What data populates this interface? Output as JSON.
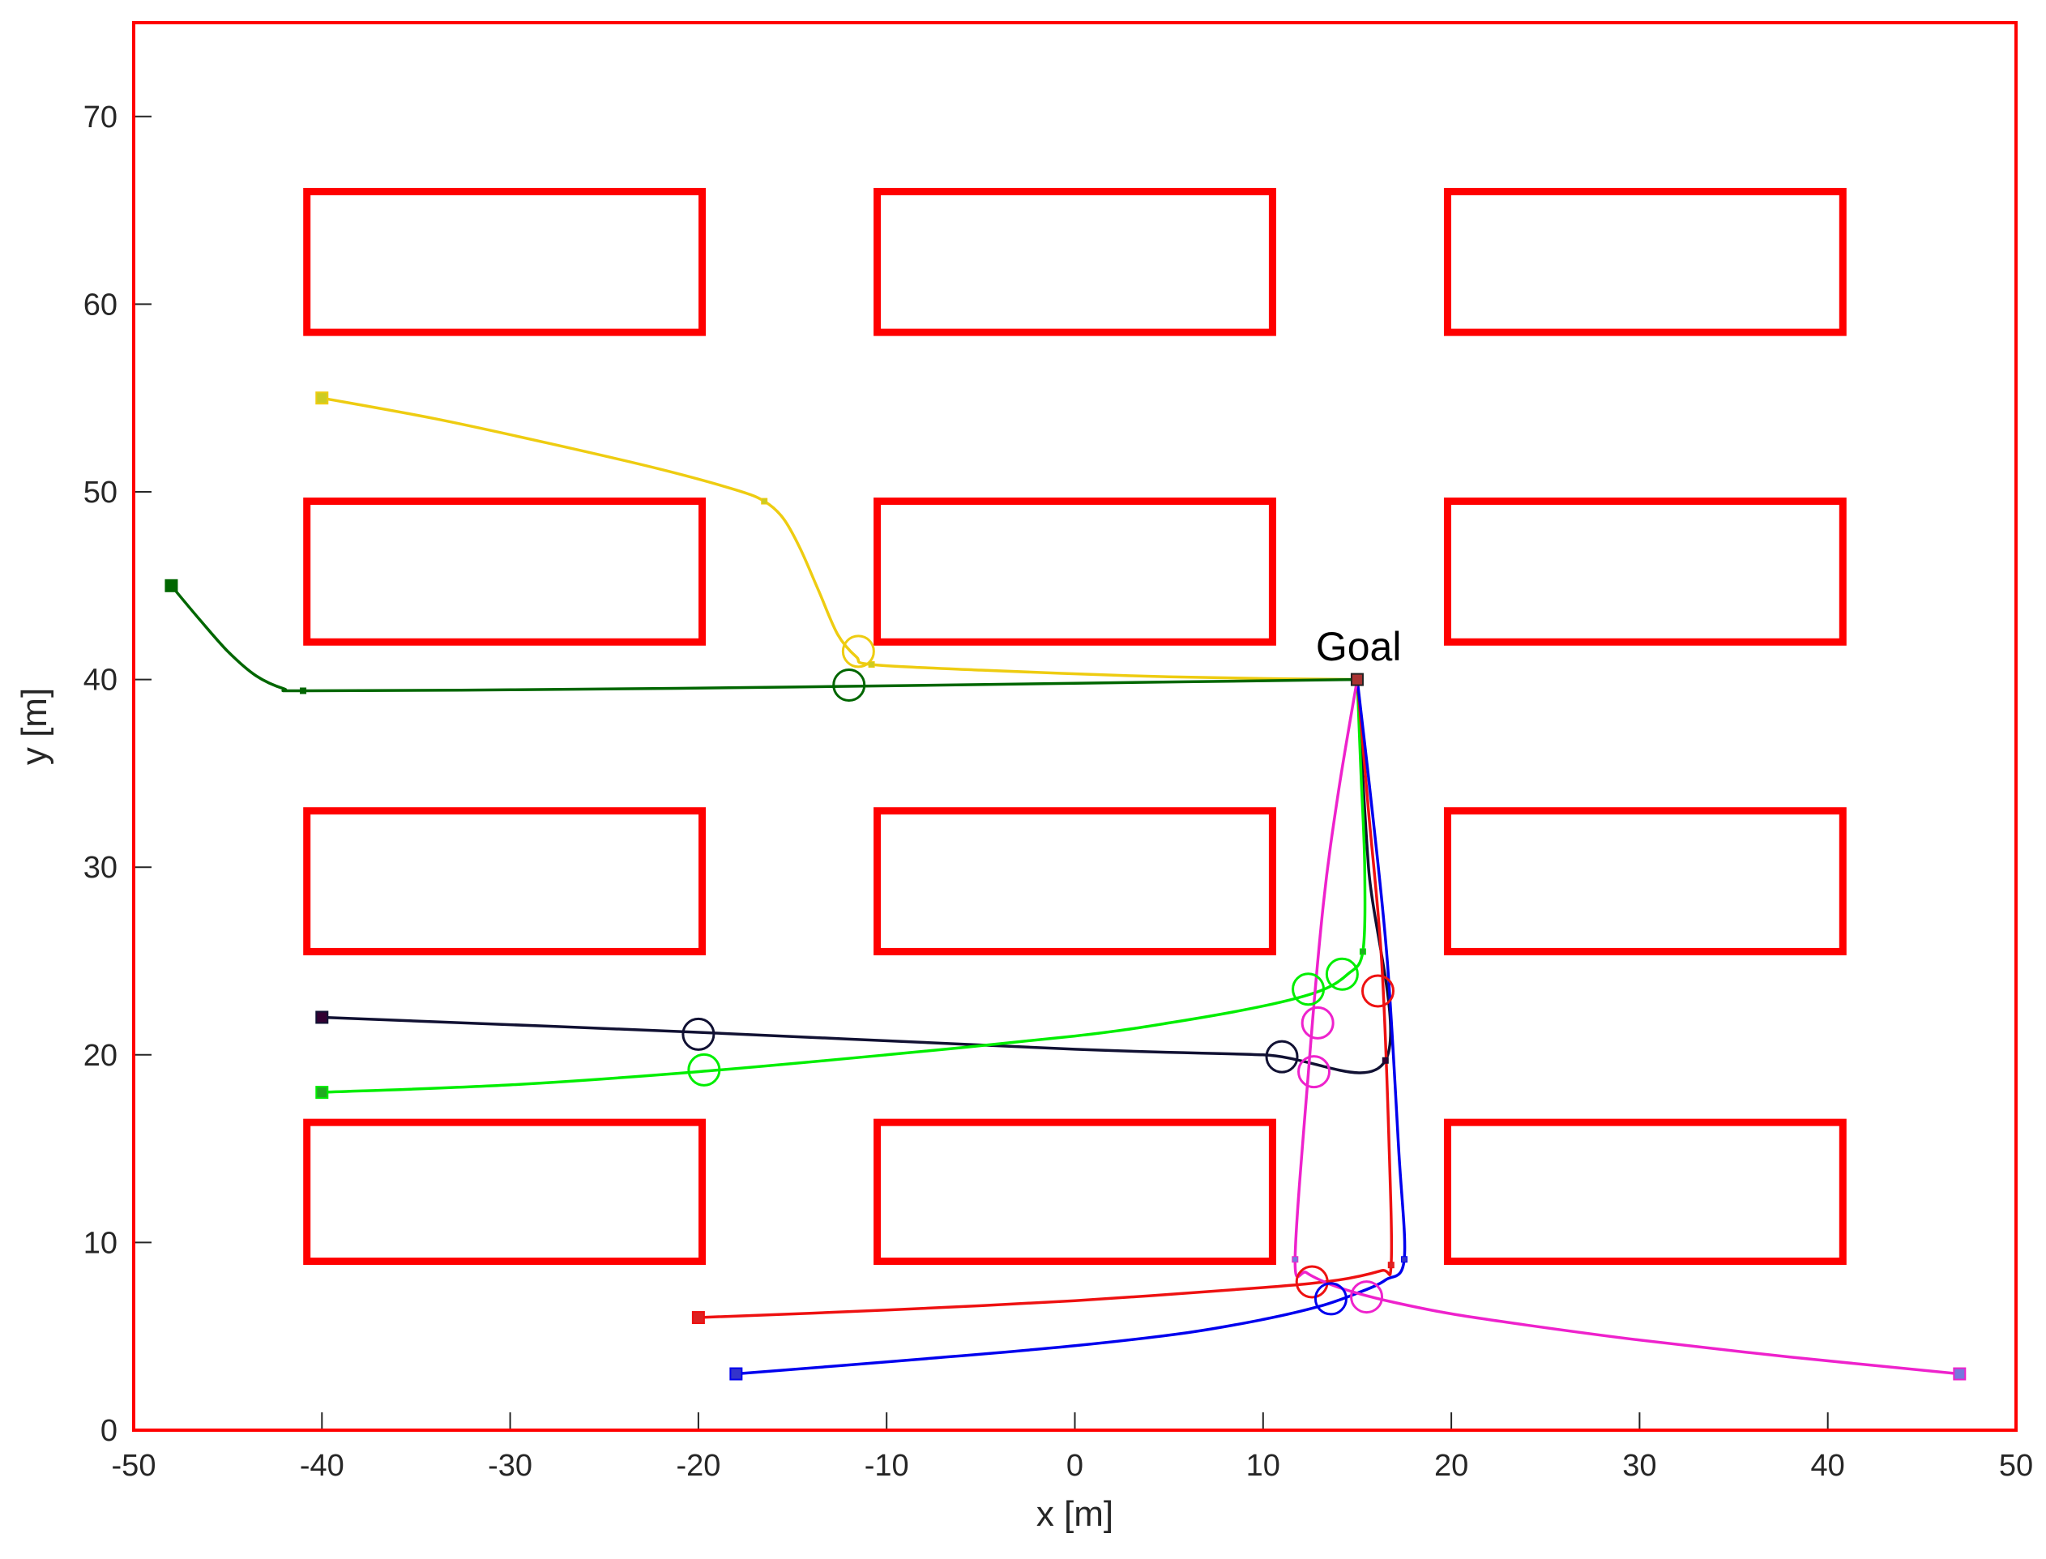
{
  "chart_data": {
    "type": "line",
    "xlabel": "x [m]",
    "ylabel": "y [m]",
    "xlim": [
      -50,
      50
    ],
    "ylim": [
      0,
      75
    ],
    "xticks": [
      -50,
      -40,
      -30,
      -20,
      -10,
      0,
      10,
      20,
      30,
      40,
      50
    ],
    "yticks": [
      0,
      10,
      20,
      30,
      40,
      50,
      60,
      70
    ],
    "grid": false,
    "frame_color": "#ff0000",
    "obstacle_color": "#ff0000",
    "obstacles": [
      {
        "x": [
          -40.8,
          -19.8
        ],
        "y": [
          9.0,
          16.4
        ]
      },
      {
        "x": [
          -10.5,
          10.5
        ],
        "y": [
          9.0,
          16.4
        ]
      },
      {
        "x": [
          19.8,
          40.8
        ],
        "y": [
          9.0,
          16.4
        ]
      },
      {
        "x": [
          -40.8,
          -19.8
        ],
        "y": [
          25.5,
          33.0
        ]
      },
      {
        "x": [
          -10.5,
          10.5
        ],
        "y": [
          25.5,
          33.0
        ]
      },
      {
        "x": [
          19.8,
          40.8
        ],
        "y": [
          25.5,
          33.0
        ]
      },
      {
        "x": [
          -40.8,
          -19.8
        ],
        "y": [
          42.0,
          49.5
        ]
      },
      {
        "x": [
          -10.5,
          10.5
        ],
        "y": [
          42.0,
          49.5
        ]
      },
      {
        "x": [
          19.8,
          40.8
        ],
        "y": [
          42.0,
          49.5
        ]
      },
      {
        "x": [
          -40.8,
          -19.8
        ],
        "y": [
          58.5,
          66.0
        ]
      },
      {
        "x": [
          -10.5,
          10.5
        ],
        "y": [
          58.5,
          66.0
        ]
      },
      {
        "x": [
          19.8,
          40.8
        ],
        "y": [
          58.5,
          66.0
        ]
      }
    ],
    "annotations": [
      {
        "text": "Goal",
        "x": 12.8,
        "y": 41.8
      }
    ],
    "goal": {
      "x": 15,
      "y": 40
    },
    "series": [
      {
        "color": "#eecc11",
        "marker_color": "#cccc22",
        "start": [
          -40,
          55
        ],
        "waypoints": [
          [
            -16.5,
            49.5
          ],
          [
            -10.8,
            40.8
          ]
        ],
        "points": [
          [
            -40,
            55
          ],
          [
            -34,
            53.9
          ],
          [
            -28,
            52.6
          ],
          [
            -22,
            51.2
          ],
          [
            -18,
            50.1
          ],
          [
            -16.5,
            49.5
          ],
          [
            -15.5,
            48.6
          ],
          [
            -14.6,
            47.0
          ],
          [
            -13.6,
            44.7
          ],
          [
            -12.6,
            42.4
          ],
          [
            -11.6,
            41.2
          ],
          [
            -10.8,
            40.8
          ],
          [
            -5,
            40.5
          ],
          [
            3,
            40.2
          ],
          [
            10,
            40.05
          ],
          [
            15,
            40
          ]
        ],
        "circles": [
          [
            -11.5,
            41.5
          ]
        ]
      },
      {
        "color": "#006600",
        "marker_color": "#006600",
        "start": [
          -48,
          45
        ],
        "waypoints": [
          [
            -41,
            39.4
          ]
        ],
        "points": [
          [
            -48,
            45
          ],
          [
            -46.5,
            43.2
          ],
          [
            -45,
            41.5
          ],
          [
            -43.5,
            40.2
          ],
          [
            -42,
            39.5
          ],
          [
            -41,
            39.4
          ],
          [
            -30,
            39.45
          ],
          [
            -15,
            39.6
          ],
          [
            0,
            39.8
          ],
          [
            15,
            40
          ]
        ],
        "circles": [
          [
            -12,
            39.7
          ]
        ]
      },
      {
        "color": "#111133",
        "marker_color": "#330033",
        "start": [
          -40,
          22
        ],
        "waypoints": [
          [
            16.5,
            19.7
          ]
        ],
        "points": [
          [
            -40,
            22
          ],
          [
            -20,
            21.2
          ],
          [
            0,
            20.3
          ],
          [
            10,
            20.0
          ],
          [
            16.5,
            19.7
          ],
          [
            15.6,
            30
          ],
          [
            15,
            40
          ]
        ],
        "circles": [
          [
            -20,
            21.1
          ],
          [
            11,
            19.9
          ]
        ]
      },
      {
        "color": "#00ee00",
        "marker_color": "#22aa22",
        "start": [
          -40,
          18
        ],
        "waypoints": [
          [
            15.3,
            25.5
          ]
        ],
        "points": [
          [
            -40,
            18
          ],
          [
            -30,
            18.4
          ],
          [
            -20,
            19.1
          ],
          [
            -10,
            20.0
          ],
          [
            0,
            21.0
          ],
          [
            5,
            21.7
          ],
          [
            10,
            22.6
          ],
          [
            13,
            23.4
          ],
          [
            14.5,
            24.3
          ],
          [
            15.3,
            25.5
          ],
          [
            15.4,
            30
          ],
          [
            15.2,
            35
          ],
          [
            15,
            40
          ]
        ],
        "circles": [
          [
            -19.7,
            19.2
          ],
          [
            12.4,
            23.5
          ],
          [
            14.2,
            24.3
          ]
        ]
      },
      {
        "color": "#ee1111",
        "marker_color": "#dd2222",
        "start": [
          -20,
          6
        ],
        "waypoints": [
          [
            16.8,
            8.8
          ]
        ],
        "points": [
          [
            -20,
            6
          ],
          [
            -10,
            6.4
          ],
          [
            0,
            6.9
          ],
          [
            10,
            7.6
          ],
          [
            14,
            8.0
          ],
          [
            16.3,
            8.5
          ],
          [
            16.8,
            8.8
          ],
          [
            16.7,
            15
          ],
          [
            16.3,
            25
          ],
          [
            15.6,
            33
          ],
          [
            15,
            40
          ]
        ],
        "circles": [
          [
            12.6,
            7.9
          ],
          [
            16.1,
            23.4
          ]
        ]
      },
      {
        "color": "#0000ee",
        "marker_color": "#3333cc",
        "start": [
          -18,
          3
        ],
        "waypoints": [
          [
            17.5,
            9.1
          ]
        ],
        "points": [
          [
            -18,
            3
          ],
          [
            -8,
            3.8
          ],
          [
            0,
            4.5
          ],
          [
            6,
            5.2
          ],
          [
            10,
            5.9
          ],
          [
            13,
            6.6
          ],
          [
            15,
            7.3
          ],
          [
            16.5,
            8.0
          ],
          [
            17.5,
            9.1
          ],
          [
            17.2,
            15
          ],
          [
            16.6,
            25
          ],
          [
            15.8,
            33
          ],
          [
            15,
            40
          ]
        ],
        "circles": [
          [
            13.6,
            7.0
          ]
        ]
      },
      {
        "color": "#ee22cc",
        "marker_color": "#7777dd",
        "start": [
          47,
          3
        ],
        "waypoints": [
          [
            11.7,
            9.1
          ]
        ],
        "points": [
          [
            47,
            3
          ],
          [
            38,
            3.9
          ],
          [
            30,
            4.8
          ],
          [
            24,
            5.6
          ],
          [
            20,
            6.2
          ],
          [
            17,
            6.8
          ],
          [
            15,
            7.3
          ],
          [
            13.5,
            7.8
          ],
          [
            12.3,
            8.4
          ],
          [
            11.7,
            9.1
          ],
          [
            12.4,
            19
          ],
          [
            13.2,
            28
          ],
          [
            14.0,
            34
          ],
          [
            15,
            40
          ]
        ],
        "circles": [
          [
            15.5,
            7.1
          ],
          [
            12.7,
            19.1
          ],
          [
            12.9,
            21.7
          ]
        ]
      }
    ]
  }
}
